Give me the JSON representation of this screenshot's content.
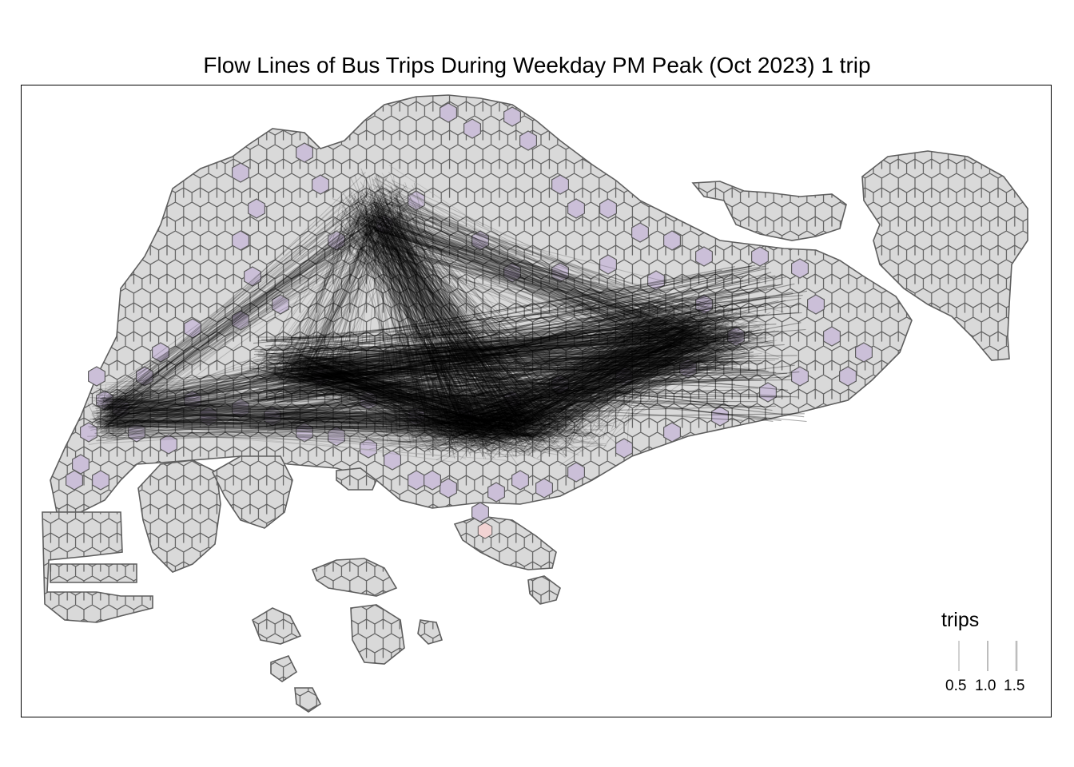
{
  "title": "Flow Lines of Bus Trips During Weekday PM Peak (Oct 2023) 1 trip",
  "map": {
    "base_fill": "#d9d9d9",
    "base_stroke": "#5e5e5e",
    "served_fill": "#cbbfd8",
    "highlight_fill": "#f2d3d3",
    "flow_color": "#000000"
  },
  "legend": {
    "title": "trips",
    "keys": [
      {
        "label": "0.5",
        "value": 0.5
      },
      {
        "label": "1.0",
        "value": 1.0
      },
      {
        "label": "1.5",
        "value": 1.5
      }
    ]
  }
}
